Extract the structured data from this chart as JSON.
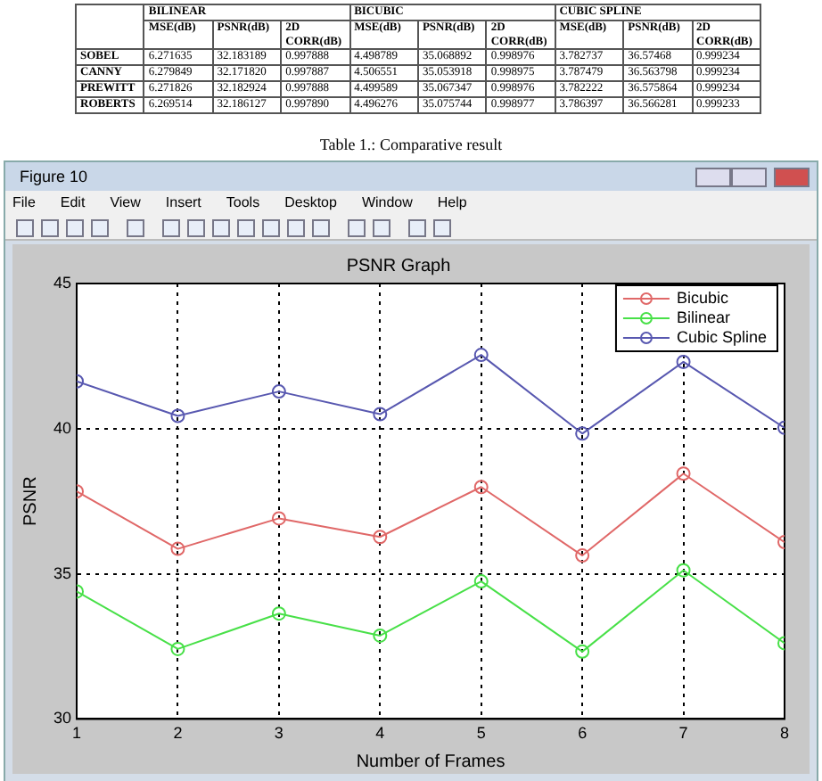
{
  "chart_data": [
    {
      "type": "other",
      "annotations": [
        "BILINEAR",
        "BICUBIC",
        "CUBIC SPLINE",
        "MSE(dB)",
        "PSNR(dB)",
        "2D CORR(dB)",
        "MSE(dB)",
        "PSNR(dB)",
        "2D CORR(dB)",
        "MSE(dB)",
        "PSNR(dB)",
        "2D CORR(dB)",
        "SOBEL",
        "6.271635",
        "32.183189",
        "0.997888",
        "4.498789",
        "35.068892",
        "0.998976",
        "3.782737",
        "36.57468",
        "0.999234",
        "CANNY",
        "6.279849",
        "32.171820",
        "0.997887",
        "4.506551",
        "35.053918",
        "0.998975",
        "3.787479",
        "36.563798",
        "0.999234",
        "PREWITT",
        "6.271826",
        "32.182924",
        "0.997888",
        "4.499589",
        "35.067347",
        "0.998976",
        "3.782222",
        "36.575864",
        "0.999234",
        "ROBERTS",
        "6.269514",
        "32.186127",
        "0.997890",
        "4.496276",
        "35.075744",
        "0.998977",
        "3.786397",
        "36.566281",
        "0.999233",
        "Table 1.: Comparative result"
      ]
    },
    {
      "type": "line",
      "title": "PSNR Graph",
      "xlabel": "Number of Frames",
      "ylabel": "PSNR",
      "annotations": [
        "Figure 10",
        "File",
        "Edit",
        "View",
        "Insert",
        "Tools",
        "Desktop",
        "Window",
        "Help"
      ],
      "x": [
        1,
        2,
        3,
        4,
        5,
        6,
        7,
        8
      ],
      "xlim": [
        1,
        8
      ],
      "xticks": [
        1,
        2,
        3,
        4,
        5,
        6,
        7,
        8
      ],
      "ylim": [
        30,
        45
      ],
      "yticks": [
        30,
        35,
        40,
        45
      ],
      "series": [
        {
          "name": "Bicubic",
          "color": "#e06868",
          "values": [
            37.84,
            35.86,
            36.91,
            36.27,
            37.99,
            35.63,
            38.45,
            36.09
          ]
        },
        {
          "name": "Bilinear",
          "color": "#48e048",
          "values": [
            34.39,
            32.41,
            33.63,
            32.87,
            34.74,
            32.32,
            35.12,
            32.61
          ]
        },
        {
          "name": "Cubic Spline",
          "color": "#5858b0",
          "values": [
            41.63,
            40.44,
            41.28,
            40.5,
            42.54,
            39.83,
            42.3,
            40.03
          ]
        }
      ],
      "grid": true,
      "legend": "top right",
      "marker": "circle",
      "line_style": "solid"
    }
  ]
}
